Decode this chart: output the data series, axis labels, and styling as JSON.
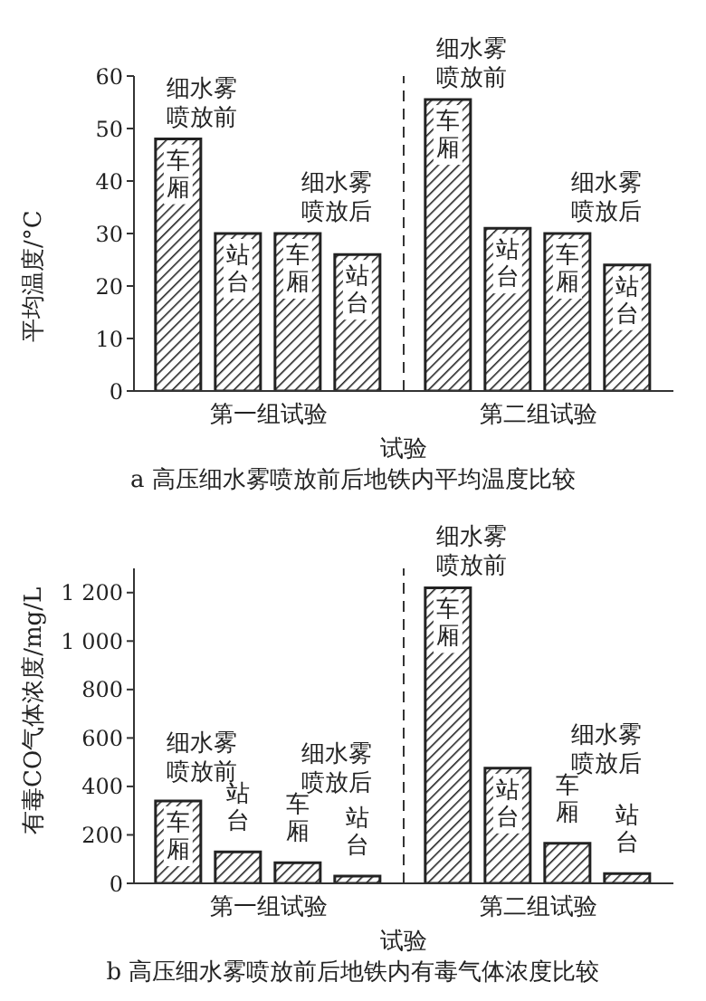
{
  "chart_data": [
    {
      "type": "bar",
      "title": "a 高压细水雾喷放前后地铁内平均温度比较",
      "xlabel": "试验",
      "ylabel": "平均温度/°C",
      "categories": [
        "第一组试验",
        "第二组试验"
      ],
      "series": [
        {
          "color": "#222222",
          "values": [
            48,
            55.5
          ],
          "value_labels": [
            "车厢",
            "车厢"
          ]
        },
        {
          "color": "#222222",
          "values": [
            30,
            31
          ],
          "value_labels": [
            "站台",
            "站台"
          ]
        },
        {
          "color": "#222222",
          "values": [
            30,
            30
          ],
          "value_labels": [
            "车厢",
            "车厢"
          ]
        },
        {
          "color": "#222222",
          "values": [
            26,
            24
          ],
          "value_labels": [
            "站台",
            "站台"
          ]
        }
      ],
      "ylim": [
        0,
        60
      ],
      "yticks": [
        0,
        10,
        20,
        30,
        40,
        50,
        60
      ],
      "annotations": [
        "细水雾喷放前",
        "细水雾喷放后",
        "细水雾喷放前",
        "细水雾喷放后"
      ]
    },
    {
      "type": "bar",
      "title": "b 高压细水雾喷放前后地铁内有毒气体浓度比较",
      "xlabel": "试验",
      "ylabel": "有毒CO气体浓度/mg/L",
      "categories": [
        "第一组试验",
        "第二组试验"
      ],
      "series": [
        {
          "color": "#222222",
          "values": [
            340,
            1220
          ],
          "value_labels": [
            "车厢",
            "车厢"
          ]
        },
        {
          "color": "#222222",
          "values": [
            130,
            475
          ],
          "value_labels": [
            "站台",
            "站台"
          ]
        },
        {
          "color": "#222222",
          "values": [
            85,
            165
          ],
          "value_labels": [
            "车厢",
            "车厢"
          ]
        },
        {
          "color": "#222222",
          "values": [
            30,
            40
          ],
          "value_labels": [
            "站台",
            "站台"
          ]
        }
      ],
      "ylim": [
        0,
        1300
      ],
      "yticks": [
        0,
        {
          "value": 200,
          "label": "200"
        },
        400,
        600,
        800,
        {
          "value": 1000,
          "label": "1 000"
        },
        {
          "value": 1200,
          "label": "1 200"
        }
      ],
      "annotations": [
        "细水雾喷放前",
        "细水雾喷放后",
        "细水雾喷放前",
        "细水雾喷放后"
      ]
    }
  ]
}
